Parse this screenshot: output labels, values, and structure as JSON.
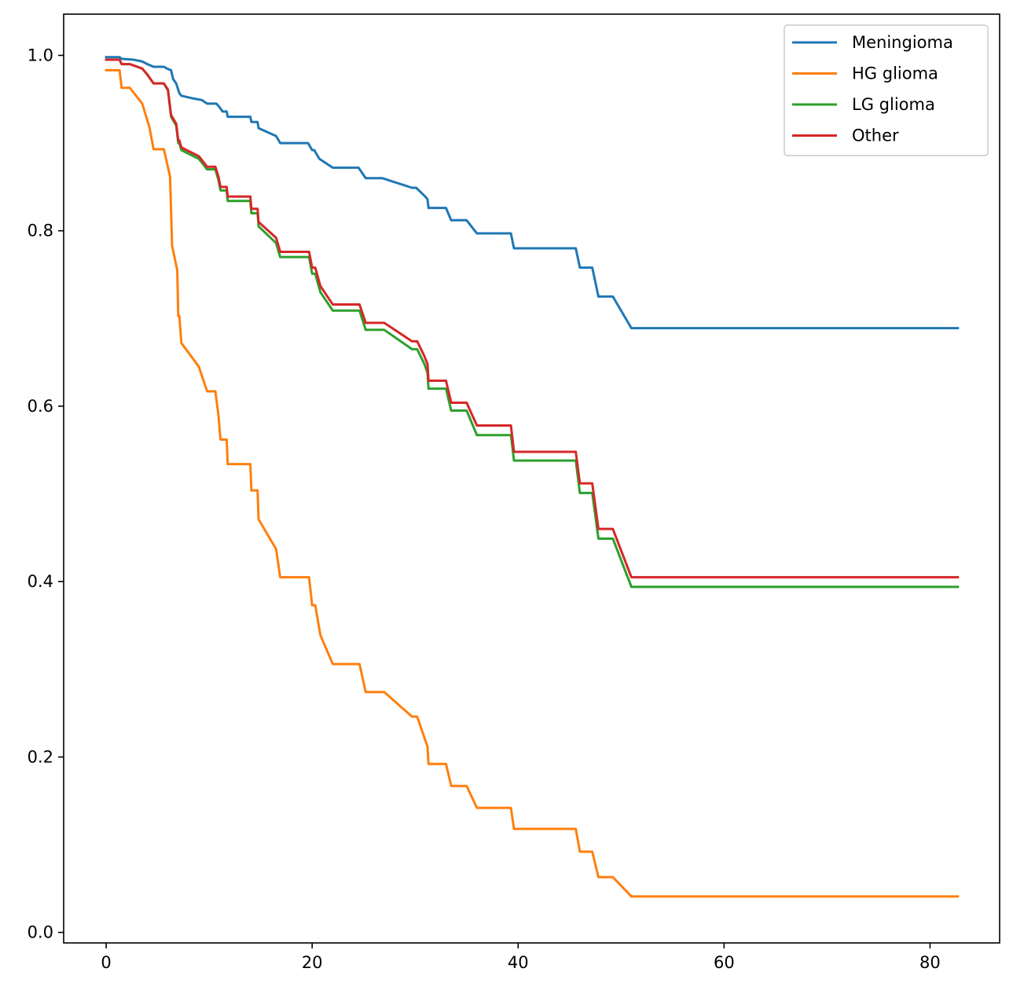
{
  "chart_data": {
    "type": "line",
    "title": "",
    "xlabel": "",
    "ylabel": "",
    "xlim": [
      -4.13,
      86.76
    ],
    "ylim": [
      -0.012,
      1.047
    ],
    "x_ticks": [
      0,
      20,
      40,
      60,
      80
    ],
    "y_ticks": [
      0.0,
      0.2,
      0.4,
      0.6,
      0.8,
      1.0
    ],
    "x_tick_labels": [
      "0",
      "20",
      "40",
      "60",
      "80"
    ],
    "y_tick_labels": [
      "0.0",
      "0.2",
      "0.4",
      "0.6",
      "0.8",
      "1.0"
    ],
    "grid": false,
    "legend_position": "top-right",
    "series": [
      {
        "name": "Meningioma",
        "color": "#1f77b4",
        "points": [
          [
            0,
            0.998
          ],
          [
            1.3,
            0.998
          ],
          [
            1.5,
            0.996
          ],
          [
            2.7,
            0.995
          ],
          [
            3.5,
            0.993
          ],
          [
            4.0,
            0.99
          ],
          [
            4.6,
            0.987
          ],
          [
            5.6,
            0.987
          ],
          [
            5.9,
            0.985
          ],
          [
            6.3,
            0.983
          ],
          [
            6.5,
            0.973
          ],
          [
            6.8,
            0.968
          ],
          [
            7.1,
            0.957
          ],
          [
            7.3,
            0.954
          ],
          [
            8.4,
            0.951
          ],
          [
            9.3,
            0.949
          ],
          [
            9.8,
            0.945
          ],
          [
            10.7,
            0.945
          ],
          [
            11.0,
            0.941
          ],
          [
            11.3,
            0.936
          ],
          [
            11.7,
            0.936
          ],
          [
            11.8,
            0.93
          ],
          [
            14.0,
            0.93
          ],
          [
            14.1,
            0.924
          ],
          [
            14.7,
            0.924
          ],
          [
            14.8,
            0.917
          ],
          [
            16.5,
            0.908
          ],
          [
            16.9,
            0.9
          ],
          [
            19.6,
            0.9
          ],
          [
            20.0,
            0.892
          ],
          [
            20.2,
            0.892
          ],
          [
            20.7,
            0.882
          ],
          [
            22.0,
            0.872
          ],
          [
            24.5,
            0.872
          ],
          [
            25.2,
            0.86
          ],
          [
            26.8,
            0.86
          ],
          [
            29.7,
            0.849
          ],
          [
            30.1,
            0.849
          ],
          [
            30.9,
            0.84
          ],
          [
            31.2,
            0.836
          ],
          [
            31.3,
            0.826
          ],
          [
            33.0,
            0.826
          ],
          [
            33.5,
            0.812
          ],
          [
            35.0,
            0.812
          ],
          [
            36.0,
            0.797
          ],
          [
            39.3,
            0.797
          ],
          [
            39.6,
            0.78
          ],
          [
            45.6,
            0.78
          ],
          [
            46.0,
            0.758
          ],
          [
            47.2,
            0.758
          ],
          [
            47.8,
            0.725
          ],
          [
            49.2,
            0.725
          ],
          [
            51.0,
            0.689
          ],
          [
            82.7,
            0.689
          ]
        ]
      },
      {
        "name": "HG glioma",
        "color": "#ff7f0e",
        "points": [
          [
            0,
            0.983
          ],
          [
            1.3,
            0.983
          ],
          [
            1.5,
            0.963
          ],
          [
            2.3,
            0.963
          ],
          [
            3.5,
            0.945
          ],
          [
            4.2,
            0.918
          ],
          [
            4.6,
            0.893
          ],
          [
            5.6,
            0.893
          ],
          [
            6.2,
            0.862
          ],
          [
            6.4,
            0.783
          ],
          [
            6.9,
            0.755
          ],
          [
            7.0,
            0.703
          ],
          [
            7.1,
            0.703
          ],
          [
            7.3,
            0.672
          ],
          [
            9.0,
            0.645
          ],
          [
            9.8,
            0.617
          ],
          [
            10.6,
            0.617
          ],
          [
            10.9,
            0.59
          ],
          [
            11.1,
            0.562
          ],
          [
            11.7,
            0.562
          ],
          [
            11.8,
            0.534
          ],
          [
            14.0,
            0.534
          ],
          [
            14.1,
            0.504
          ],
          [
            14.7,
            0.504
          ],
          [
            14.8,
            0.471
          ],
          [
            16.5,
            0.437
          ],
          [
            16.9,
            0.405
          ],
          [
            19.7,
            0.405
          ],
          [
            20.0,
            0.373
          ],
          [
            20.3,
            0.373
          ],
          [
            20.8,
            0.339
          ],
          [
            22.0,
            0.306
          ],
          [
            24.6,
            0.306
          ],
          [
            25.2,
            0.274
          ],
          [
            27.0,
            0.274
          ],
          [
            29.7,
            0.246
          ],
          [
            30.2,
            0.246
          ],
          [
            30.9,
            0.222
          ],
          [
            31.2,
            0.212
          ],
          [
            31.3,
            0.192
          ],
          [
            33.0,
            0.192
          ],
          [
            33.5,
            0.167
          ],
          [
            35.0,
            0.167
          ],
          [
            36.0,
            0.142
          ],
          [
            39.3,
            0.142
          ],
          [
            39.6,
            0.118
          ],
          [
            45.6,
            0.118
          ],
          [
            46.0,
            0.092
          ],
          [
            47.2,
            0.092
          ],
          [
            47.8,
            0.063
          ],
          [
            49.2,
            0.063
          ],
          [
            51.0,
            0.041
          ],
          [
            82.7,
            0.041
          ]
        ]
      },
      {
        "name": "LG glioma",
        "color": "#2ca02c",
        "points": [
          [
            0,
            0.995
          ],
          [
            1.3,
            0.995
          ],
          [
            1.5,
            0.99
          ],
          [
            2.3,
            0.99
          ],
          [
            3.5,
            0.985
          ],
          [
            4.0,
            0.978
          ],
          [
            4.6,
            0.968
          ],
          [
            5.6,
            0.968
          ],
          [
            6.0,
            0.96
          ],
          [
            6.3,
            0.93
          ],
          [
            6.8,
            0.92
          ],
          [
            7.0,
            0.9
          ],
          [
            7.1,
            0.9
          ],
          [
            7.3,
            0.892
          ],
          [
            9.0,
            0.882
          ],
          [
            9.8,
            0.87
          ],
          [
            10.6,
            0.87
          ],
          [
            10.9,
            0.858
          ],
          [
            11.1,
            0.846
          ],
          [
            11.7,
            0.846
          ],
          [
            11.8,
            0.834
          ],
          [
            14.0,
            0.834
          ],
          [
            14.1,
            0.82
          ],
          [
            14.7,
            0.82
          ],
          [
            14.8,
            0.805
          ],
          [
            16.5,
            0.786
          ],
          [
            16.9,
            0.77
          ],
          [
            19.7,
            0.77
          ],
          [
            20.0,
            0.751
          ],
          [
            20.3,
            0.751
          ],
          [
            20.8,
            0.73
          ],
          [
            22.0,
            0.709
          ],
          [
            24.6,
            0.709
          ],
          [
            25.2,
            0.687
          ],
          [
            27.0,
            0.687
          ],
          [
            29.7,
            0.665
          ],
          [
            30.2,
            0.665
          ],
          [
            30.9,
            0.648
          ],
          [
            31.2,
            0.638
          ],
          [
            31.3,
            0.62
          ],
          [
            33.0,
            0.62
          ],
          [
            33.5,
            0.595
          ],
          [
            35.0,
            0.595
          ],
          [
            36.0,
            0.567
          ],
          [
            39.3,
            0.567
          ],
          [
            39.6,
            0.538
          ],
          [
            45.6,
            0.538
          ],
          [
            46.0,
            0.501
          ],
          [
            47.2,
            0.501
          ],
          [
            47.8,
            0.449
          ],
          [
            49.2,
            0.449
          ],
          [
            51.0,
            0.394
          ],
          [
            82.7,
            0.394
          ]
        ]
      },
      {
        "name": "Other",
        "color": "#d62728",
        "points": [
          [
            0,
            0.995
          ],
          [
            1.3,
            0.995
          ],
          [
            1.5,
            0.99
          ],
          [
            2.3,
            0.99
          ],
          [
            3.5,
            0.985
          ],
          [
            4.0,
            0.978
          ],
          [
            4.6,
            0.968
          ],
          [
            5.6,
            0.968
          ],
          [
            6.0,
            0.961
          ],
          [
            6.3,
            0.932
          ],
          [
            6.8,
            0.922
          ],
          [
            7.0,
            0.903
          ],
          [
            7.1,
            0.903
          ],
          [
            7.3,
            0.895
          ],
          [
            9.0,
            0.885
          ],
          [
            9.8,
            0.873
          ],
          [
            10.6,
            0.873
          ],
          [
            10.9,
            0.862
          ],
          [
            11.1,
            0.85
          ],
          [
            11.7,
            0.85
          ],
          [
            11.8,
            0.839
          ],
          [
            14.0,
            0.839
          ],
          [
            14.1,
            0.825
          ],
          [
            14.7,
            0.825
          ],
          [
            14.8,
            0.81
          ],
          [
            16.5,
            0.792
          ],
          [
            16.9,
            0.776
          ],
          [
            19.7,
            0.776
          ],
          [
            20.0,
            0.758
          ],
          [
            20.3,
            0.758
          ],
          [
            20.8,
            0.737
          ],
          [
            22.0,
            0.716
          ],
          [
            24.6,
            0.716
          ],
          [
            25.2,
            0.695
          ],
          [
            27.0,
            0.695
          ],
          [
            29.7,
            0.674
          ],
          [
            30.2,
            0.674
          ],
          [
            30.9,
            0.657
          ],
          [
            31.2,
            0.648
          ],
          [
            31.3,
            0.629
          ],
          [
            33.0,
            0.629
          ],
          [
            33.5,
            0.604
          ],
          [
            35.0,
            0.604
          ],
          [
            36.0,
            0.578
          ],
          [
            39.3,
            0.578
          ],
          [
            39.6,
            0.548
          ],
          [
            45.6,
            0.548
          ],
          [
            46.0,
            0.512
          ],
          [
            47.2,
            0.512
          ],
          [
            47.8,
            0.46
          ],
          [
            49.2,
            0.46
          ],
          [
            51.0,
            0.405
          ],
          [
            82.7,
            0.405
          ]
        ]
      }
    ]
  }
}
